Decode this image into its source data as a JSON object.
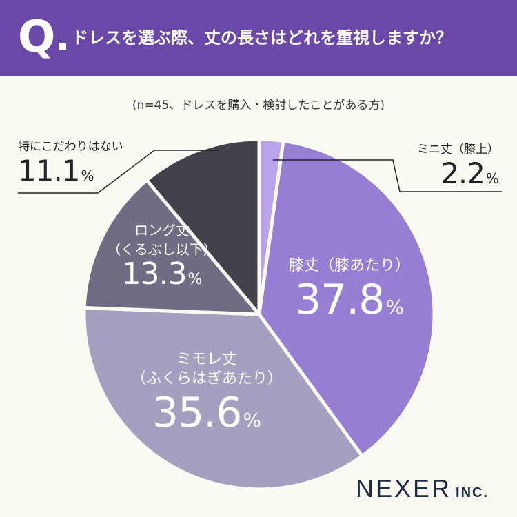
{
  "header": {
    "q_mark": "Q",
    "question": "ドレスを選ぶ際、丈の長さはどれを重視しますか？"
  },
  "subtitle": "(n=45、ドレスを購入・検討したことがある方)",
  "chart_data": {
    "type": "pie",
    "title": "ドレスを選ぶ際、丈の長さはどれを重視しますか？",
    "subtitle": "(n=45、ドレスを購入・検討したことがある方)",
    "start": "top, clockwise",
    "slices": [
      {
        "label": "ミニ丈（膝上）",
        "value": 2.2,
        "color": "#b9a3ea"
      },
      {
        "label": "膝丈（膝あたり）",
        "value": 37.8,
        "color": "#967ed4"
      },
      {
        "label": "ミモレ丈（ふくらはぎあたり）",
        "value": 35.6,
        "color": "#a69fc0"
      },
      {
        "label": "ロング丈（くるぶし以下）",
        "value": 13.3,
        "color": "#726b84"
      },
      {
        "label": "特にこだわりはない",
        "value": 11.1,
        "color": "#45414c"
      }
    ]
  },
  "labels": {
    "mini": {
      "name": "ミニ丈（膝上）",
      "pct": "2.2",
      "unit": "%"
    },
    "knee": {
      "name": "膝丈（膝あたり）",
      "pct": "37.8",
      "unit": "%"
    },
    "midi_line1": "ミモレ丈",
    "midi_line2": "（ふくらはぎあたり）",
    "midi": {
      "pct": "35.6",
      "unit": "%"
    },
    "long_line1": "ロング丈",
    "long_line2": "（くるぶし以下）",
    "long": {
      "pct": "13.3",
      "unit": "%"
    },
    "none": {
      "name": "特にこだわりはない",
      "pct": "11.1",
      "unit": "%"
    }
  },
  "brand": {
    "name": "NEXER",
    "suffix": "INC."
  }
}
